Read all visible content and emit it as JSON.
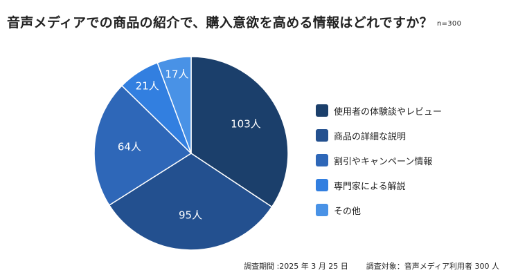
{
  "header": {
    "title": "音声メディアでの商品の紹介で、購入意欲を高める情報はどれですか？",
    "sample": "n=300"
  },
  "chart_data": {
    "type": "pie",
    "unit": "人",
    "slices": [
      {
        "label": "使用者の体験談やレビュー",
        "value": 103,
        "color": "#1b3f6b"
      },
      {
        "label": "商品の詳細な説明",
        "value": 95,
        "color": "#23508f"
      },
      {
        "label": "割引やキャンペーン情報",
        "value": 64,
        "color": "#2e67b8"
      },
      {
        "label": "専門家による解説",
        "value": 21,
        "color": "#327fe0"
      },
      {
        "label": "その他",
        "value": 17,
        "color": "#4992e6"
      }
    ],
    "legend_position": "right"
  },
  "footer": {
    "period": "調査期間 :2025 年 3 月 25 日",
    "target": "調査対象：音声メディア利用者 300 人"
  }
}
